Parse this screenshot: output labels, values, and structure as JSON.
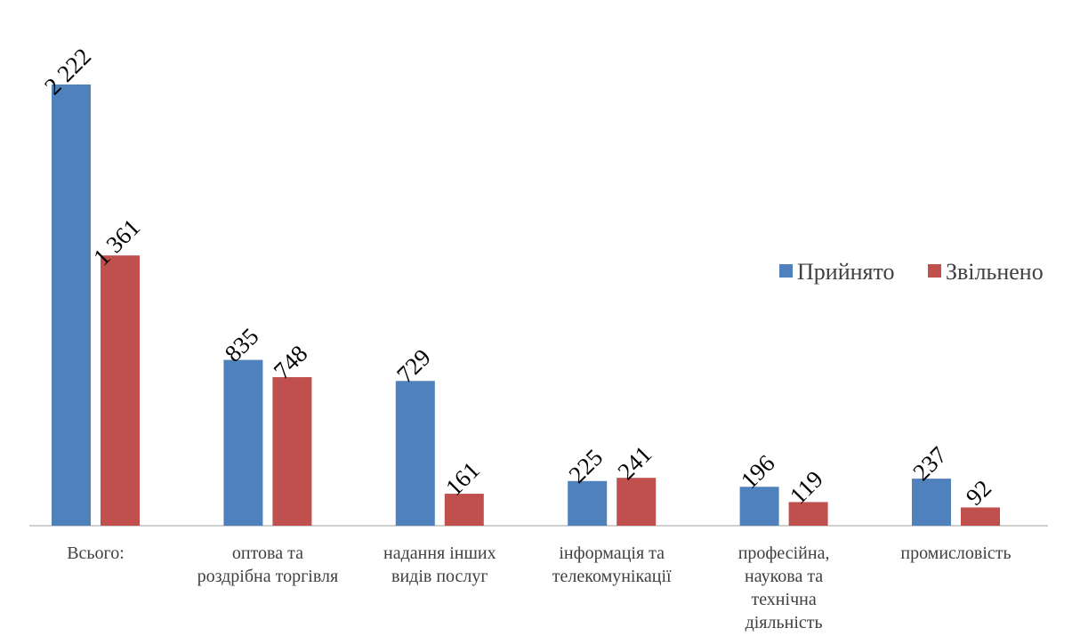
{
  "chart_data": {
    "type": "bar",
    "categories": [
      [
        "Всього:"
      ],
      [
        "оптова та",
        "роздрібна торгівля"
      ],
      [
        "надання інших",
        "видів послуг"
      ],
      [
        "інформація та",
        "телекомунікації"
      ],
      [
        "професійна,",
        "наукова та",
        "технічна",
        "діяльність"
      ],
      [
        "промисловість"
      ]
    ],
    "series": [
      {
        "name": "Прийнято",
        "color": "#4f81bd",
        "values": [
          2222,
          835,
          729,
          225,
          196,
          237
        ],
        "labels": [
          "2 222",
          "835",
          "729",
          "225",
          "196",
          "237"
        ]
      },
      {
        "name": "Звільнено",
        "color": "#c0504d",
        "values": [
          1361,
          748,
          161,
          241,
          119,
          92
        ],
        "labels": [
          "1 361",
          "748",
          "161",
          "241",
          "119",
          "92"
        ]
      }
    ],
    "ylim": [
      0,
      2222
    ],
    "legend_position": "right",
    "grid": false
  }
}
